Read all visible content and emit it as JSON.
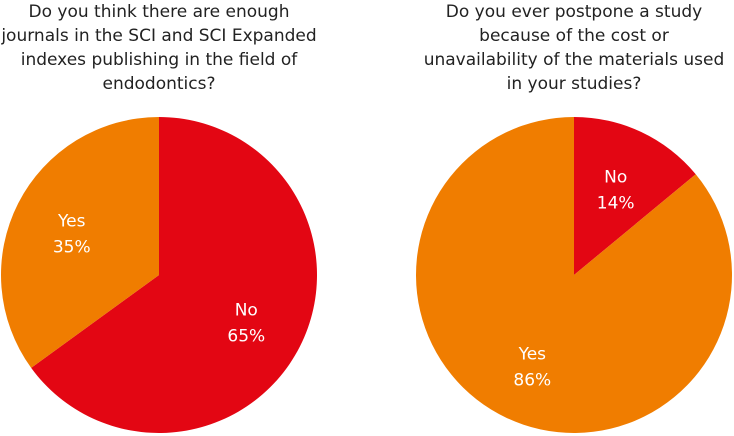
{
  "chart_data": [
    {
      "type": "pie",
      "title": "Do you think there are enough\njournals in the SCI and SCI Expanded\nindexes publishing in the field of\nendodontics?",
      "start_angle_deg": 0,
      "direction": "clockwise",
      "slices": [
        {
          "label": "No",
          "value": 65,
          "value_label": "65%",
          "color": "#e30613"
        },
        {
          "label": "Yes",
          "value": 35,
          "value_label": "35%",
          "color": "#f07d00"
        }
      ]
    },
    {
      "type": "pie",
      "title": "Do you ever postpone a study\nbecause of the cost or\nunavailability of the materials used\nin your studies?",
      "start_angle_deg": 0,
      "direction": "clockwise",
      "slices": [
        {
          "label": "No",
          "value": 14,
          "value_label": "14%",
          "color": "#e30613"
        },
        {
          "label": "Yes",
          "value": 86,
          "value_label": "86%",
          "color": "#f07d00"
        }
      ]
    }
  ]
}
